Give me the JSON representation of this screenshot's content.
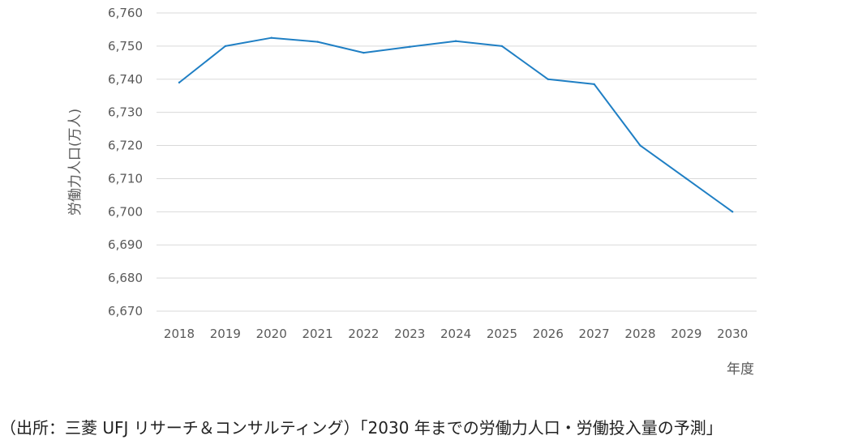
{
  "chart_data": {
    "type": "line",
    "x": [
      "2018",
      "2019",
      "2020",
      "2021",
      "2022",
      "2023",
      "2024",
      "2025",
      "2026",
      "2027",
      "2028",
      "2029",
      "2030"
    ],
    "series": [
      {
        "values": [
          6739,
          6750,
          6752.5,
          6751.3,
          6748,
          6749.8,
          6751.5,
          6750,
          6740,
          6738.5,
          6720,
          6710,
          6700
        ]
      }
    ],
    "ylim": [
      6670,
      6760
    ],
    "yticks": [
      6760,
      6750,
      6740,
      6730,
      6720,
      6710,
      6700,
      6690,
      6680,
      6670
    ],
    "ytick_labels": [
      "6,760",
      "6,750",
      "6,740",
      "6,730",
      "6,720",
      "6,710",
      "6,700",
      "6,690",
      "6,680",
      "6,670"
    ],
    "ylabel": "労働力人口(万人)",
    "xlabel": "年度",
    "grid": true,
    "line_color": "#1f7fc4",
    "grid_color": "#d9d9d9"
  },
  "source_note": "（出所：三菱 UFJ リサーチ＆コンサルティング）「2030 年までの労働力人口・労働投入量の予測」"
}
